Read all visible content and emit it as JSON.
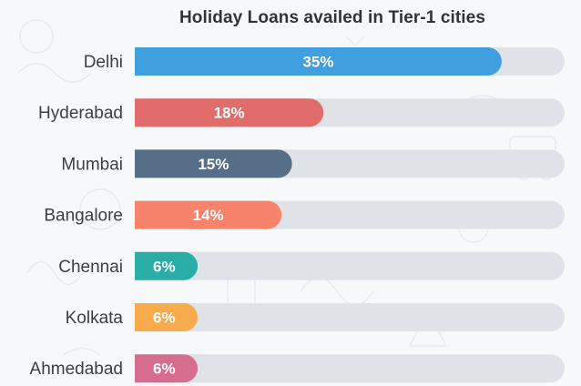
{
  "chart_data": {
    "type": "bar",
    "orientation": "horizontal",
    "title": "Holiday Loans availed in Tier-1 cities",
    "categories": [
      "Delhi",
      "Hyderabad",
      "Mumbai",
      "Bangalore",
      "Chennai",
      "Kolkata",
      "Ahmedabad"
    ],
    "values": [
      35,
      18,
      15,
      14,
      6,
      6,
      6
    ],
    "value_labels": [
      "35%",
      "18%",
      "15%",
      "14%",
      "6%",
      "6%",
      "6%"
    ],
    "bar_colors": [
      "#3f9fdf",
      "#e06c6c",
      "#566f86",
      "#f6836a",
      "#29ada6",
      "#f8ab4d",
      "#d76d8e"
    ],
    "track_color": "#dfe2e6",
    "xlim": [
      0,
      41
    ],
    "grid": false,
    "legend": "none",
    "xlabel": "",
    "ylabel": ""
  }
}
